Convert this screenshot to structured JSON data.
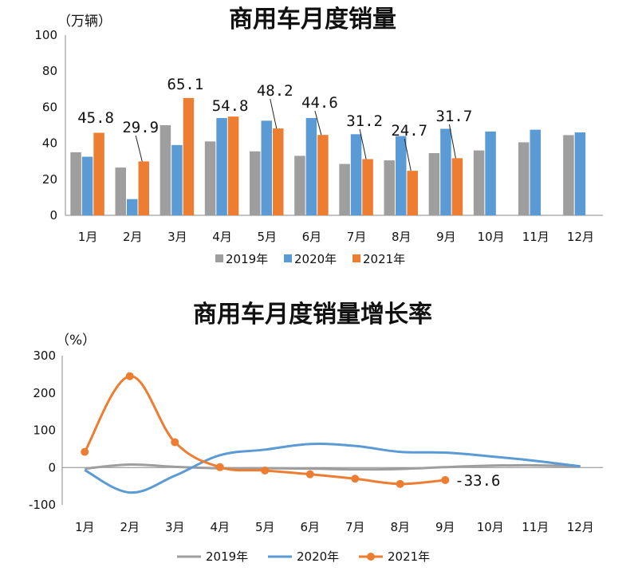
{
  "colors": {
    "s2019": "#9e9e9e",
    "s2020": "#5b9bd5",
    "s2021": "#ed7d31",
    "highlight": "#e8001c"
  },
  "chart_data": [
    {
      "type": "bar",
      "title": "商用车月度销量",
      "unit_label": "（万辆）",
      "ylim": [
        0,
        100
      ],
      "yticks": [
        "0",
        "20",
        "40",
        "60",
        "80",
        "100"
      ],
      "categories": [
        "1月",
        "2月",
        "3月",
        "4月",
        "5月",
        "6月",
        "7月",
        "8月",
        "9月",
        "10月",
        "11月",
        "12月"
      ],
      "series": [
        {
          "name": "2019年",
          "values": [
            35,
            26.5,
            50,
            41,
            35.5,
            33,
            28.5,
            30.5,
            34.5,
            36,
            40.5,
            44.5
          ]
        },
        {
          "name": "2020年",
          "values": [
            32.5,
            9,
            39,
            54,
            52.5,
            54,
            45,
            44,
            48,
            46.5,
            47.5,
            46
          ]
        },
        {
          "name": "2021年",
          "values": [
            45.8,
            29.9,
            65.1,
            54.8,
            48.2,
            44.6,
            31.2,
            24.7,
            31.7,
            null,
            null,
            null
          ]
        }
      ],
      "data_labels": [
        "45.8",
        "29.9",
        "65.1",
        "54.8",
        "48.2",
        "44.6",
        "31.2",
        "24.7",
        "31.7"
      ],
      "legend": "bottom"
    },
    {
      "type": "line",
      "title": "商用车月度销量增长率",
      "unit_label": "（%）",
      "ylim": [
        -100,
        300
      ],
      "yticks": [
        "-100",
        "0",
        "100",
        "200",
        "300"
      ],
      "categories": [
        "1月",
        "2月",
        "3月",
        "4月",
        "5月",
        "6月",
        "7月",
        "8月",
        "9月",
        "10月",
        "11月",
        "12月"
      ],
      "series": [
        {
          "name": "2019年",
          "values": [
            -3,
            8,
            2,
            -2,
            -2,
            -3,
            -5,
            -4,
            1,
            5,
            6,
            3
          ]
        },
        {
          "name": "2020年",
          "values": [
            -7,
            -67,
            -22,
            33,
            48,
            63,
            58,
            42,
            40,
            30,
            18,
            3
          ]
        },
        {
          "name": "2021年",
          "values": [
            42,
            245,
            68,
            1,
            -8,
            -18,
            -30,
            -44,
            -33.6,
            null,
            null,
            null
          ]
        }
      ],
      "annotation": "-33.6",
      "legend": "bottom"
    }
  ]
}
